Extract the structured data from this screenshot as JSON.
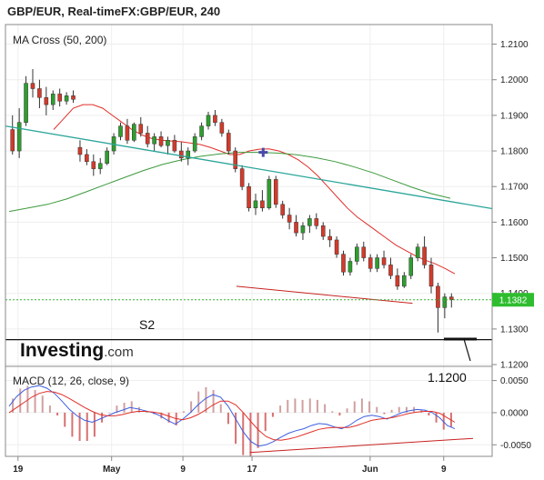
{
  "header": {
    "title": "GBP/EUR, Real-timeFX:GBP/EUR, 240"
  },
  "brand": {
    "name": "Investing",
    "suffix": ".com"
  },
  "chart_data": [
    {
      "type": "candlestick",
      "indicator_label": "MA Cross (50, 200)",
      "y_ticks": [
        "1.2100",
        "1.2000",
        "1.1900",
        "1.1800",
        "1.1700",
        "1.1600",
        "1.1500",
        "1.1400",
        "1.1300",
        "1.1200"
      ],
      "y_range": [
        1.1195,
        1.2155
      ],
      "x_ticks": [
        "19",
        "May",
        "9",
        "17",
        "Jun",
        "9"
      ],
      "last_price": "1.1382",
      "annotations": {
        "support_label": "S2",
        "target_label": "1.1200"
      },
      "colors": {
        "up": "#2e9e2e",
        "down": "#d43a2a",
        "ma_fast": "#e0302a",
        "ma_slow": "#3c9a3c",
        "trendline": "#2aa59a",
        "support": "#c82020",
        "price_line": "#35b035",
        "price_badge": "#2ebd2e",
        "macd": "#3d5ee0",
        "signal": "#e0302a"
      },
      "candles": [
        [
          1.186,
          1.19,
          1.179,
          1.18
        ],
        [
          1.18,
          1.192,
          1.178,
          1.188
        ],
        [
          1.188,
          1.201,
          1.187,
          1.199
        ],
        [
          1.199,
          1.203,
          1.195,
          1.1975
        ],
        [
          1.1975,
          1.2,
          1.192,
          1.195
        ],
        [
          1.195,
          1.198,
          1.19,
          1.193
        ],
        [
          1.193,
          1.197,
          1.1915,
          1.196
        ],
        [
          1.196,
          1.1975,
          1.1925,
          1.194
        ],
        [
          1.194,
          1.1965,
          1.193,
          1.1955
        ],
        [
          1.1955,
          1.197,
          1.1935,
          1.1945
        ],
        [
          1.181,
          1.183,
          1.177,
          1.179
        ],
        [
          1.179,
          1.1805,
          1.176,
          1.177
        ],
        [
          1.177,
          1.179,
          1.173,
          1.175
        ],
        [
          1.175,
          1.178,
          1.1735,
          1.1765
        ],
        [
          1.1765,
          1.181,
          1.176,
          1.18
        ],
        [
          1.18,
          1.185,
          1.179,
          1.184
        ],
        [
          1.184,
          1.188,
          1.183,
          1.187
        ],
        [
          1.187,
          1.189,
          1.182,
          1.183
        ],
        [
          1.183,
          1.188,
          1.1825,
          1.1875
        ],
        [
          1.1875,
          1.1895,
          1.184,
          1.185
        ],
        [
          1.185,
          1.187,
          1.181,
          1.182
        ],
        [
          1.182,
          1.185,
          1.18,
          1.184
        ],
        [
          1.184,
          1.1855,
          1.181,
          1.1815
        ],
        [
          1.1815,
          1.184,
          1.179,
          1.183
        ],
        [
          1.183,
          1.1845,
          1.1795,
          1.18
        ],
        [
          1.18,
          1.1825,
          1.177,
          1.178
        ],
        [
          1.178,
          1.181,
          1.176,
          1.18
        ],
        [
          1.18,
          1.185,
          1.1795,
          1.184
        ],
        [
          1.184,
          1.188,
          1.183,
          1.187
        ],
        [
          1.187,
          1.191,
          1.186,
          1.19
        ],
        [
          1.19,
          1.1915,
          1.187,
          1.188
        ],
        [
          1.188,
          1.189,
          1.184,
          1.185
        ],
        [
          1.185,
          1.186,
          1.179,
          1.18
        ],
        [
          1.18,
          1.181,
          1.174,
          1.175
        ],
        [
          1.175,
          1.176,
          1.169,
          1.17
        ],
        [
          1.17,
          1.171,
          1.163,
          1.164
        ],
        [
          1.164,
          1.168,
          1.162,
          1.166
        ],
        [
          1.166,
          1.169,
          1.163,
          1.164
        ],
        [
          1.164,
          1.173,
          1.1635,
          1.172
        ],
        [
          1.172,
          1.173,
          1.164,
          1.165
        ],
        [
          1.165,
          1.166,
          1.161,
          1.162
        ],
        [
          1.162,
          1.164,
          1.158,
          1.16
        ],
        [
          1.16,
          1.162,
          1.156,
          1.157
        ],
        [
          1.157,
          1.16,
          1.155,
          1.159
        ],
        [
          1.159,
          1.162,
          1.157,
          1.161
        ],
        [
          1.161,
          1.1625,
          1.158,
          1.159
        ],
        [
          1.159,
          1.16,
          1.155,
          1.156
        ],
        [
          1.156,
          1.158,
          1.153,
          1.155
        ],
        [
          1.155,
          1.156,
          1.15,
          1.151
        ],
        [
          1.151,
          1.152,
          1.145,
          1.146
        ],
        [
          1.146,
          1.15,
          1.145,
          1.149
        ],
        [
          1.149,
          1.154,
          1.148,
          1.153
        ],
        [
          1.153,
          1.1545,
          1.149,
          1.15
        ],
        [
          1.15,
          1.151,
          1.146,
          1.147
        ],
        [
          1.147,
          1.151,
          1.146,
          1.15
        ],
        [
          1.15,
          1.152,
          1.147,
          1.148
        ],
        [
          1.148,
          1.15,
          1.144,
          1.145
        ],
        [
          1.145,
          1.147,
          1.141,
          1.142
        ],
        [
          1.142,
          1.146,
          1.1415,
          1.145
        ],
        [
          1.145,
          1.151,
          1.144,
          1.15
        ],
        [
          1.15,
          1.154,
          1.149,
          1.153
        ],
        [
          1.153,
          1.156,
          1.147,
          1.148
        ],
        [
          1.148,
          1.15,
          1.14,
          1.142
        ],
        [
          1.142,
          1.143,
          1.129,
          1.136
        ],
        [
          1.136,
          1.14,
          1.133,
          1.139
        ],
        [
          1.139,
          1.14,
          1.136,
          1.1382
        ]
      ],
      "ma_fast": [
        1.186,
        1.189,
        1.192,
        1.193,
        1.193,
        1.192,
        1.19,
        1.188,
        1.186,
        1.1845,
        1.1835,
        1.183,
        1.1828,
        1.1826,
        1.1822,
        1.1818,
        1.181,
        1.18,
        1.179,
        1.179,
        1.18,
        1.1805,
        1.1806,
        1.18,
        1.179,
        1.1775,
        1.1755,
        1.173,
        1.17,
        1.167,
        1.164,
        1.1615,
        1.1595,
        1.1575,
        1.1555,
        1.1535,
        1.152,
        1.1505,
        1.1493,
        1.1483,
        1.147,
        1.1455
      ],
      "ma_slow": [
        1.163,
        1.164,
        1.165,
        1.1665,
        1.1685,
        1.1705,
        1.1725,
        1.1745,
        1.1762,
        1.1775,
        1.1785,
        1.1792,
        1.1796,
        1.1796,
        1.1794,
        1.1789,
        1.1781,
        1.177,
        1.1755,
        1.1738,
        1.1718,
        1.1698,
        1.168,
        1.1667
      ],
      "trendline": [
        [
          1.187,
          0.0
        ],
        [
          1.1638,
          1.0
        ]
      ],
      "support_line": [
        [
          1.142,
          0.51
        ],
        [
          1.1372,
          0.905
        ]
      ],
      "s2_level": 1.127,
      "cross_marker": 1.1796
    },
    {
      "type": "macd",
      "indicator_label": "MACD (12, 26, close, 9)",
      "y_ticks": [
        "0.0050",
        "0.0000",
        "-0.0050"
      ],
      "y_range": [
        -0.0068,
        0.0072
      ],
      "macd": [
        0.001,
        0.0025,
        0.0035,
        0.004,
        0.0042,
        0.0038,
        0.003,
        0.0018,
        0.0005,
        -0.0005,
        -0.0012,
        -0.0015,
        -0.001,
        -0.0005,
        0.0,
        0.0004,
        0.0008,
        0.0006,
        0.0003,
        0.0,
        -0.0005,
        -0.0012,
        -0.0018,
        -0.001,
        0.0,
        0.0012,
        0.0022,
        0.0028,
        0.0024,
        0.001,
        -0.001,
        -0.003,
        -0.0045,
        -0.0052,
        -0.005,
        -0.0045,
        -0.0038,
        -0.0032,
        -0.0028,
        -0.0025,
        -0.002,
        -0.0017,
        -0.0018,
        -0.0022,
        -0.0025,
        -0.002,
        -0.0012,
        -0.0006,
        -0.0004,
        -0.0006,
        -0.001,
        -0.0005,
        0.0,
        0.0003,
        0.0005,
        0.0004,
        0.0,
        -0.0008,
        -0.002,
        -0.0025
      ],
      "signal": [
        0.0,
        0.0008,
        0.0016,
        0.0024,
        0.003,
        0.0033,
        0.0032,
        0.0028,
        0.0022,
        0.0015,
        0.0008,
        0.0002,
        -0.0003,
        -0.0005,
        -0.0005,
        -0.0003,
        0.0,
        0.0002,
        0.0002,
        0.0001,
        -0.0001,
        -0.0005,
        -0.0009,
        -0.0011,
        -0.0008,
        -0.0003,
        0.0004,
        0.0012,
        0.0018,
        0.0018,
        0.0012,
        0.0,
        -0.0014,
        -0.0027,
        -0.0037,
        -0.0042,
        -0.0043,
        -0.0041,
        -0.0038,
        -0.0034,
        -0.003,
        -0.0026,
        -0.0024,
        -0.0023,
        -0.0023,
        -0.0023,
        -0.002,
        -0.0016,
        -0.0012,
        -0.001,
        -0.0009,
        -0.0007,
        -0.0004,
        -0.0001,
        0.0001,
        0.0002,
        0.0002,
        -0.0001,
        -0.0008,
        -0.0015
      ],
      "trendline": [
        [
          -0.0062,
          0.54
        ],
        [
          -0.004,
          1.0
        ]
      ]
    }
  ]
}
